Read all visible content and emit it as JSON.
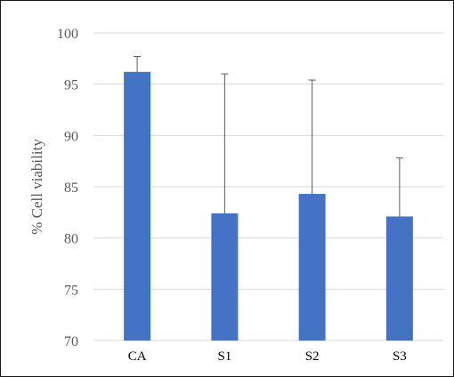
{
  "chart_data": {
    "type": "bar",
    "title": "",
    "xlabel": "",
    "ylabel": "% Cell viability",
    "categories": [
      "CA",
      "S1",
      "S2",
      "S3"
    ],
    "series": [
      {
        "values": [
          96.2,
          82.4,
          84.3,
          82.1
        ],
        "error_upper": [
          1.5,
          13.6,
          11.1,
          5.7
        ],
        "color": "#4472c4"
      }
    ],
    "ylim": [
      70,
      100
    ],
    "yticks": [
      70,
      75,
      80,
      85,
      90,
      95,
      100
    ],
    "grid": true,
    "legend": "none"
  },
  "colors": {
    "bar": "#4472c4",
    "gridline": "#d9d9d9",
    "error_bar": "#595959",
    "frame": "#1a1a1a"
  }
}
